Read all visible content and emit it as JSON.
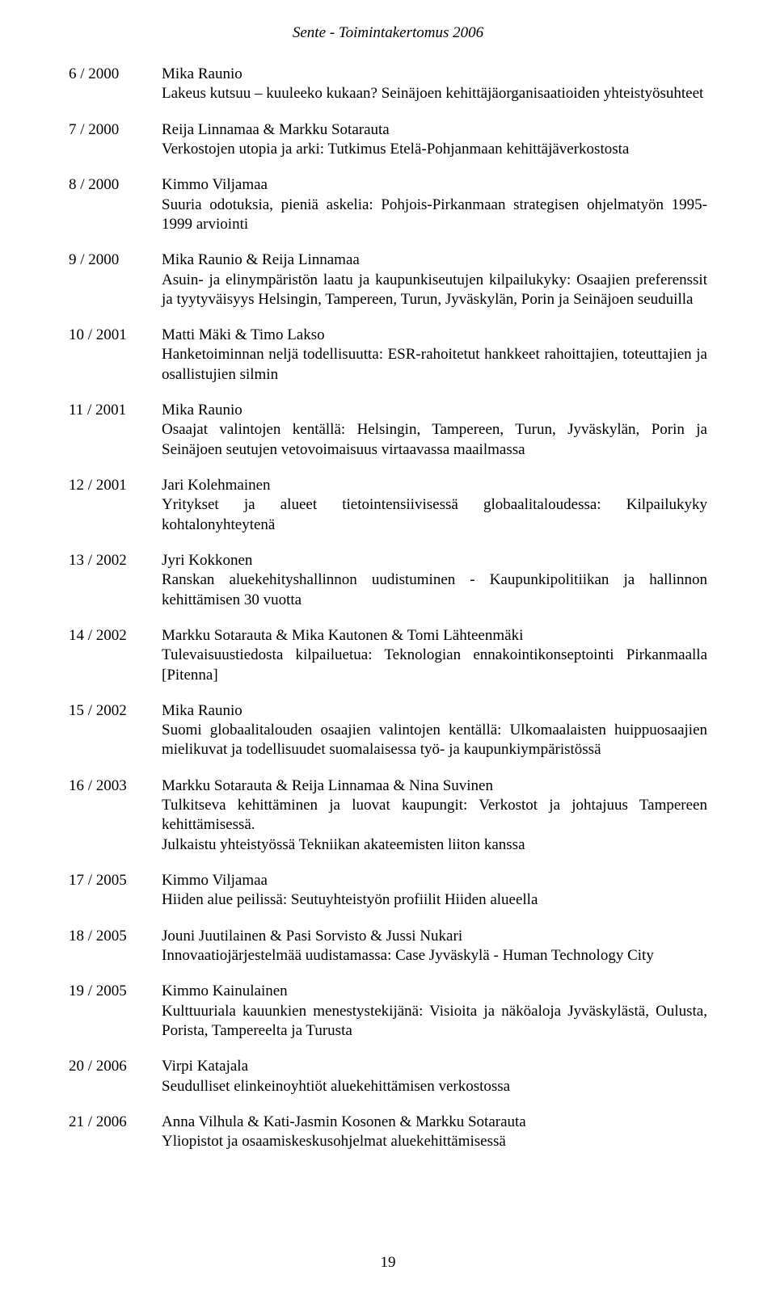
{
  "header": "Sente - Toimintakertomus 2006",
  "page_number": "19",
  "entries": [
    {
      "id": "6 / 2000",
      "authors": "Mika Raunio",
      "title": "Lakeus kutsuu – kuuleeko kukaan? Seinäjoen kehittäjäorganisaatioiden yhteistyösuhteet"
    },
    {
      "id": "7 / 2000",
      "authors": "Reija Linnamaa & Markku Sotarauta",
      "title": "Verkostojen utopia ja arki: Tutkimus Etelä-Pohjanmaan kehittäjäverkostosta"
    },
    {
      "id": "8 / 2000",
      "authors": "Kimmo Viljamaa",
      "title": "Suuria odotuksia, pieniä askelia: Pohjois-Pirkanmaan strategisen ohjelmatyön 1995-1999 arviointi"
    },
    {
      "id": "9 / 2000",
      "authors": "Mika Raunio & Reija Linnamaa",
      "title": "Asuin- ja elinympäristön laatu ja kaupunkiseutujen kilpailukyky: Osaajien preferenssit ja tyytyväisyys Helsingin, Tampereen, Turun, Jyväskylän, Porin ja Seinäjoen seuduilla"
    },
    {
      "id": "10 / 2001",
      "authors": "Matti Mäki & Timo Lakso",
      "title": "Hanketoiminnan neljä todellisuutta: ESR-rahoitetut hankkeet rahoittajien, toteuttajien ja osallistujien silmin"
    },
    {
      "id": "11 / 2001",
      "authors": "Mika Raunio",
      "title": "Osaajat valintojen kentällä: Helsingin, Tampereen, Turun, Jyväskylän, Porin ja Seinäjoen seutujen vetovoimaisuus virtaavassa maailmassa"
    },
    {
      "id": "12 / 2001",
      "authors": "Jari Kolehmainen",
      "title": "Yritykset ja alueet tietointensiivisessä globaalitaloudessa: Kilpailukyky kohtalonyhteytenä"
    },
    {
      "id": "13 / 2002",
      "authors": "Jyri Kokkonen",
      "title": "Ranskan aluekehityshallinnon uudistuminen - Kaupunkipolitiikan ja hallinnon kehittämisen 30 vuotta"
    },
    {
      "id": "14 / 2002",
      "authors": "Markku Sotarauta & Mika Kautonen & Tomi Lähteenmäki",
      "title": "Tulevaisuustiedosta kilpailuetua: Teknologian ennakointikonseptointi Pirkanmaalla [Pitenna]"
    },
    {
      "id": "15 / 2002",
      "authors": "Mika Raunio",
      "title": "Suomi globaalitalouden osaajien valintojen kentällä: Ulkomaalaisten huippuosaajien mielikuvat ja todellisuudet suomalaisessa työ- ja kaupunkiympäristössä"
    },
    {
      "id": "16 / 2003",
      "authors": "Markku Sotarauta & Reija Linnamaa & Nina Suvinen",
      "title": "Tulkitseva kehittäminen ja luovat kaupungit: Verkostot ja johtajuus Tampereen kehittämisessä.",
      "note": "Julkaistu yhteistyössä Tekniikan akateemisten liiton kanssa"
    },
    {
      "id": "17 / 2005",
      "authors": "Kimmo Viljamaa",
      "title": "Hiiden alue peilissä: Seutuyhteistyön profiilit Hiiden alueella"
    },
    {
      "id": "18 / 2005",
      "authors": "Jouni Juutilainen & Pasi Sorvisto & Jussi Nukari",
      "title": "Innovaatiojärjestelmää uudistamassa: Case Jyväskylä - Human Technology City"
    },
    {
      "id": "19 / 2005",
      "authors": "Kimmo Kainulainen",
      "title": "Kulttuuriala kauunkien menestystekijänä: Visioita ja näköaloja Jyväskylästä, Oulusta, Porista, Tampereelta ja Turusta"
    },
    {
      "id": "20 / 2006",
      "authors": "Virpi Katajala",
      "title": "Seudulliset elinkeinoyhtiöt aluekehittämisen verkostossa"
    },
    {
      "id": "21 / 2006",
      "authors": "Anna Vilhula & Kati-Jasmin Kosonen & Markku Sotarauta",
      "title": "Yliopistot ja osaamiskeskusohjelmat aluekehittämisessä"
    }
  ]
}
